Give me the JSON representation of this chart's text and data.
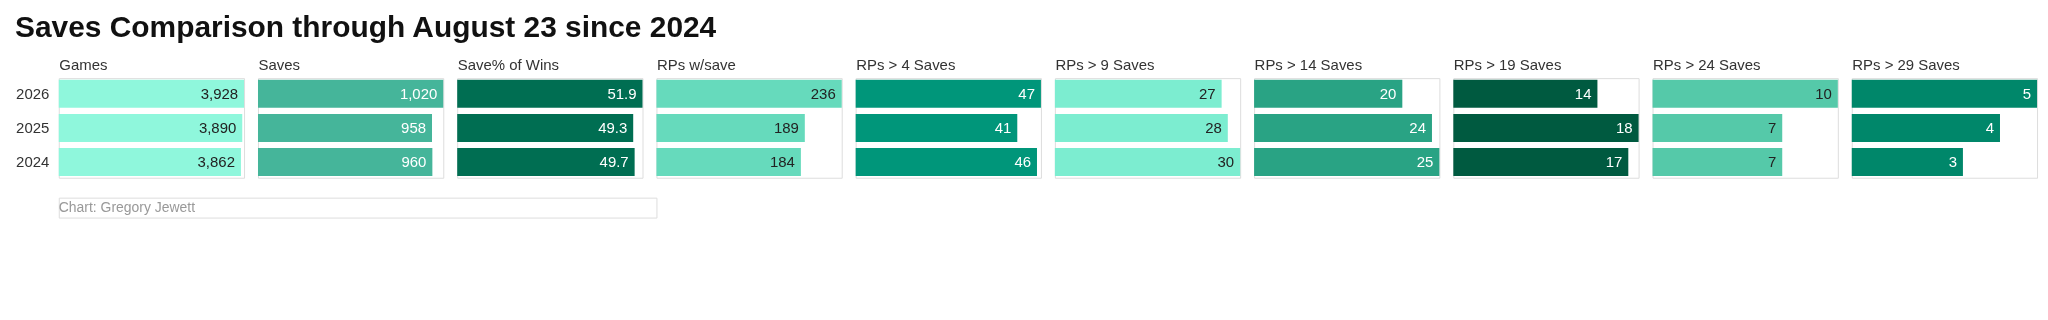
{
  "chart_data": [
    {
      "type": "bar",
      "orientation": "horizontal",
      "title": "Saves Comparison through August 23 since 2024",
      "annotations": [
        "Chart: Gregory Jewett"
      ],
      "xlabel": "Games",
      "categories": [
        "2026",
        "2025",
        "2024"
      ],
      "values": [
        3928,
        3890,
        3862
      ],
      "value_labels": [
        "3,928",
        "3,890",
        "3,862"
      ],
      "color": "#8ff7dc",
      "tick_labels": "y"
    },
    {
      "type": "bar",
      "orientation": "horizontal",
      "xlabel": "Saves",
      "categories": [
        "2026",
        "2025",
        "2024"
      ],
      "values": [
        1020,
        958,
        960
      ],
      "value_labels": [
        "1,020",
        "958",
        "960"
      ],
      "color": "#45b59a",
      "tick_labels": false
    },
    {
      "type": "bar",
      "orientation": "horizontal",
      "xlabel": "Save% of Wins",
      "categories": [
        "2026",
        "2025",
        "2024"
      ],
      "values": [
        51.9,
        49.3,
        49.7
      ],
      "color": "#006e52",
      "data_labels": true,
      "tick_labels": false
    },
    {
      "type": "bar",
      "orientation": "horizontal",
      "xlabel": "RPs w/save",
      "categories": [
        "2026",
        "2025",
        "2024"
      ],
      "values": [
        236,
        189,
        184
      ],
      "color": "#66dabc",
      "data_labels": true,
      "tick_labels": false
    },
    {
      "type": "bar",
      "orientation": "horizontal",
      "xlabel": "RPs > 4 Saves",
      "categories": [
        "2026",
        "2025",
        "2024"
      ],
      "values": [
        47,
        41,
        46
      ],
      "color": "#00967a",
      "data_labels": true,
      "tick_labels": false
    },
    {
      "type": "bar",
      "orientation": "horizontal",
      "xlabel": "RPs > 9 Saves",
      "categories": [
        "2026",
        "2025",
        "2024"
      ],
      "values": [
        27,
        28,
        30
      ],
      "color": "#7cedd0",
      "data_labels": true,
      "tick_labels": false
    },
    {
      "type": "bar",
      "orientation": "horizontal",
      "xlabel": "RPs > 14 Saves",
      "categories": [
        "2026",
        "2025",
        "2024"
      ],
      "values": [
        20,
        24,
        25
      ],
      "color": "#29a384",
      "data_labels": true,
      "tick_labels": false
    },
    {
      "type": "bar",
      "orientation": "horizontal",
      "xlabel": "RPs > 19 Saves",
      "categories": [
        "2026",
        "2025",
        "2024"
      ],
      "values": [
        14,
        18,
        17
      ],
      "color": "#005a40",
      "data_labels": true,
      "tick_labels": false
    },
    {
      "type": "bar",
      "orientation": "horizontal",
      "xlabel": "RPs > 24 Saves",
      "categories": [
        "2026",
        "2025",
        "2024"
      ],
      "values": [
        10,
        7,
        7
      ],
      "color": "#55c9a9",
      "data_labels": true,
      "tick_labels": false
    },
    {
      "type": "bar",
      "orientation": "horizontal",
      "xlabel": "RPs > 29 Saves",
      "categories": [
        "2026",
        "2025",
        "2024"
      ],
      "values": [
        5,
        4,
        3
      ],
      "color": "#00876a",
      "data_labels": true,
      "tick_labels": false
    }
  ]
}
